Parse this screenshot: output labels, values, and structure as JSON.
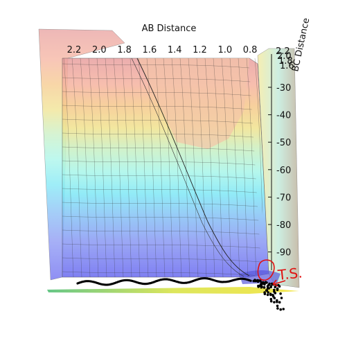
{
  "chart_data": {
    "type": "surface3d",
    "xlabel": "AB Distance",
    "ylabel": "BC Distance",
    "x_ticks": [
      "2.2",
      "2.0",
      "1.8",
      "1.6",
      "1.4",
      "1.2",
      "1.0",
      "0.8"
    ],
    "y_ticks": [
      "2.2",
      "2.0",
      "1.8",
      "1.6"
    ],
    "z_ticks": [
      "-30",
      "-40",
      "-50",
      "-60",
      "-70",
      "-80",
      "-90"
    ],
    "colormap": "jet",
    "surface_alpha": 0.45,
    "trajectory_color": "#000000",
    "annotation": {
      "text": "T.S.",
      "color": "#e01010"
    },
    "grid": true
  }
}
